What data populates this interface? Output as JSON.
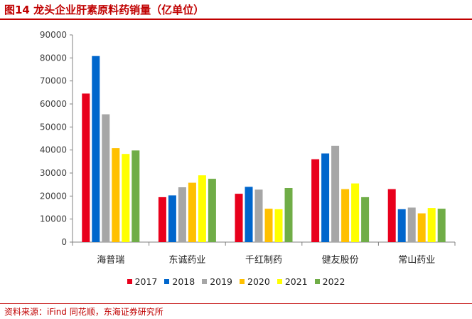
{
  "figure": {
    "title": "图14  龙头企业肝素原料药销量（亿单位）",
    "source": "资料来源：iFind 同花顺，东海证券研究所"
  },
  "chart_data": {
    "type": "bar",
    "categories": [
      "海普瑞",
      "东诚药业",
      "千红制药",
      "健友股份",
      "常山药业"
    ],
    "series": [
      {
        "name": "2017",
        "color": "#e8001c",
        "values": [
          64500,
          19500,
          21000,
          36000,
          23000
        ]
      },
      {
        "name": "2018",
        "color": "#0066cc",
        "values": [
          80800,
          20300,
          24000,
          38500,
          14300
        ]
      },
      {
        "name": "2019",
        "color": "#a6a6a6",
        "values": [
          55500,
          23800,
          22800,
          41800,
          15000
        ]
      },
      {
        "name": "2020",
        "color": "#ffc000",
        "values": [
          40800,
          25800,
          14500,
          23000,
          12500
        ]
      },
      {
        "name": "2021",
        "color": "#ffff00",
        "values": [
          38300,
          29000,
          14300,
          25500,
          14800
        ]
      },
      {
        "name": "2022",
        "color": "#70ad47",
        "values": [
          39800,
          27500,
          23500,
          19500,
          14500
        ]
      }
    ],
    "yticks": [
      0,
      10000,
      20000,
      30000,
      40000,
      50000,
      60000,
      70000,
      80000,
      90000
    ],
    "ylim": [
      0,
      90000
    ],
    "grid": false,
    "legend_position": "bottom"
  }
}
